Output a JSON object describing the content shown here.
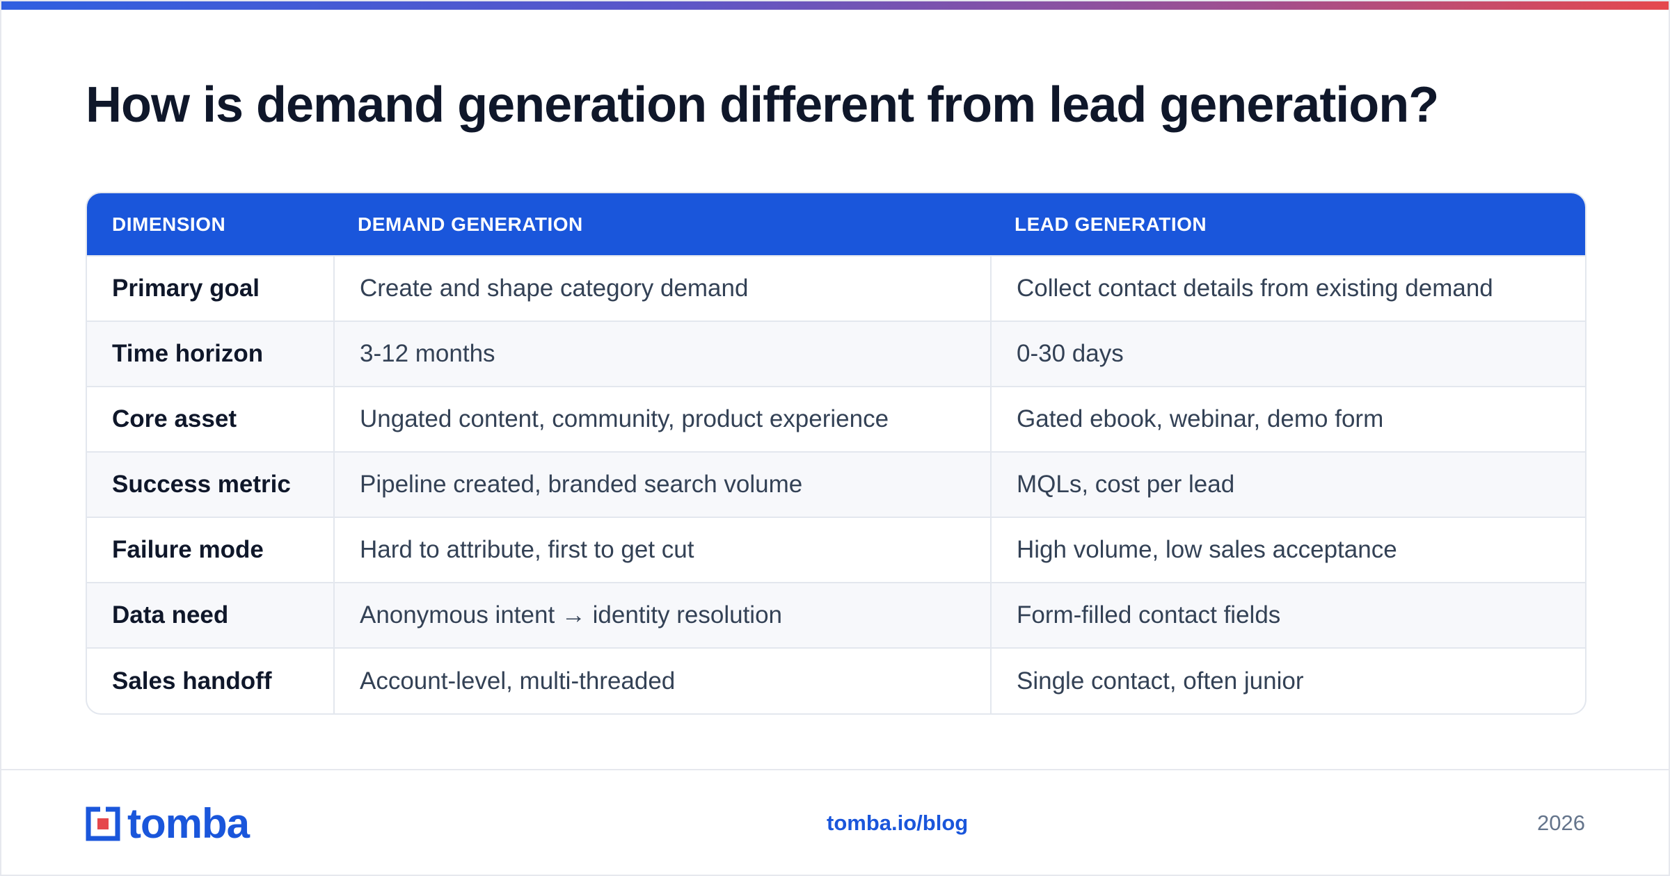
{
  "title": "How is demand generation different from lead generation?",
  "table": {
    "headers": [
      "DIMENSION",
      "DEMAND GENERATION",
      "LEAD GENERATION"
    ],
    "rows": [
      [
        "Primary goal",
        "Create and shape category demand",
        "Collect contact details from existing demand"
      ],
      [
        "Time horizon",
        "3-12 months",
        "0-30 days"
      ],
      [
        "Core asset",
        "Ungated content, community, product experience",
        "Gated ebook, webinar, demo form"
      ],
      [
        "Success metric",
        "Pipeline created, branded search volume",
        "MQLs, cost per lead"
      ],
      [
        "Failure mode",
        "Hard to attribute, first to get cut",
        "High volume, low sales acceptance"
      ],
      [
        "Data need",
        "Anonymous intent → identity resolution",
        "Form-filled contact fields"
      ],
      [
        "Sales handoff",
        "Account-level, multi-threaded",
        "Single contact, often junior"
      ]
    ]
  },
  "footer": {
    "logo_text": "tomba",
    "url": "tomba.io/blog",
    "year": "2026"
  },
  "colors": {
    "accent": "#1a56db",
    "logo_red": "#e5484d",
    "heading": "#0f172a",
    "body_text": "#334155"
  },
  "icons": {
    "logo": "tomba-logo-mark"
  }
}
